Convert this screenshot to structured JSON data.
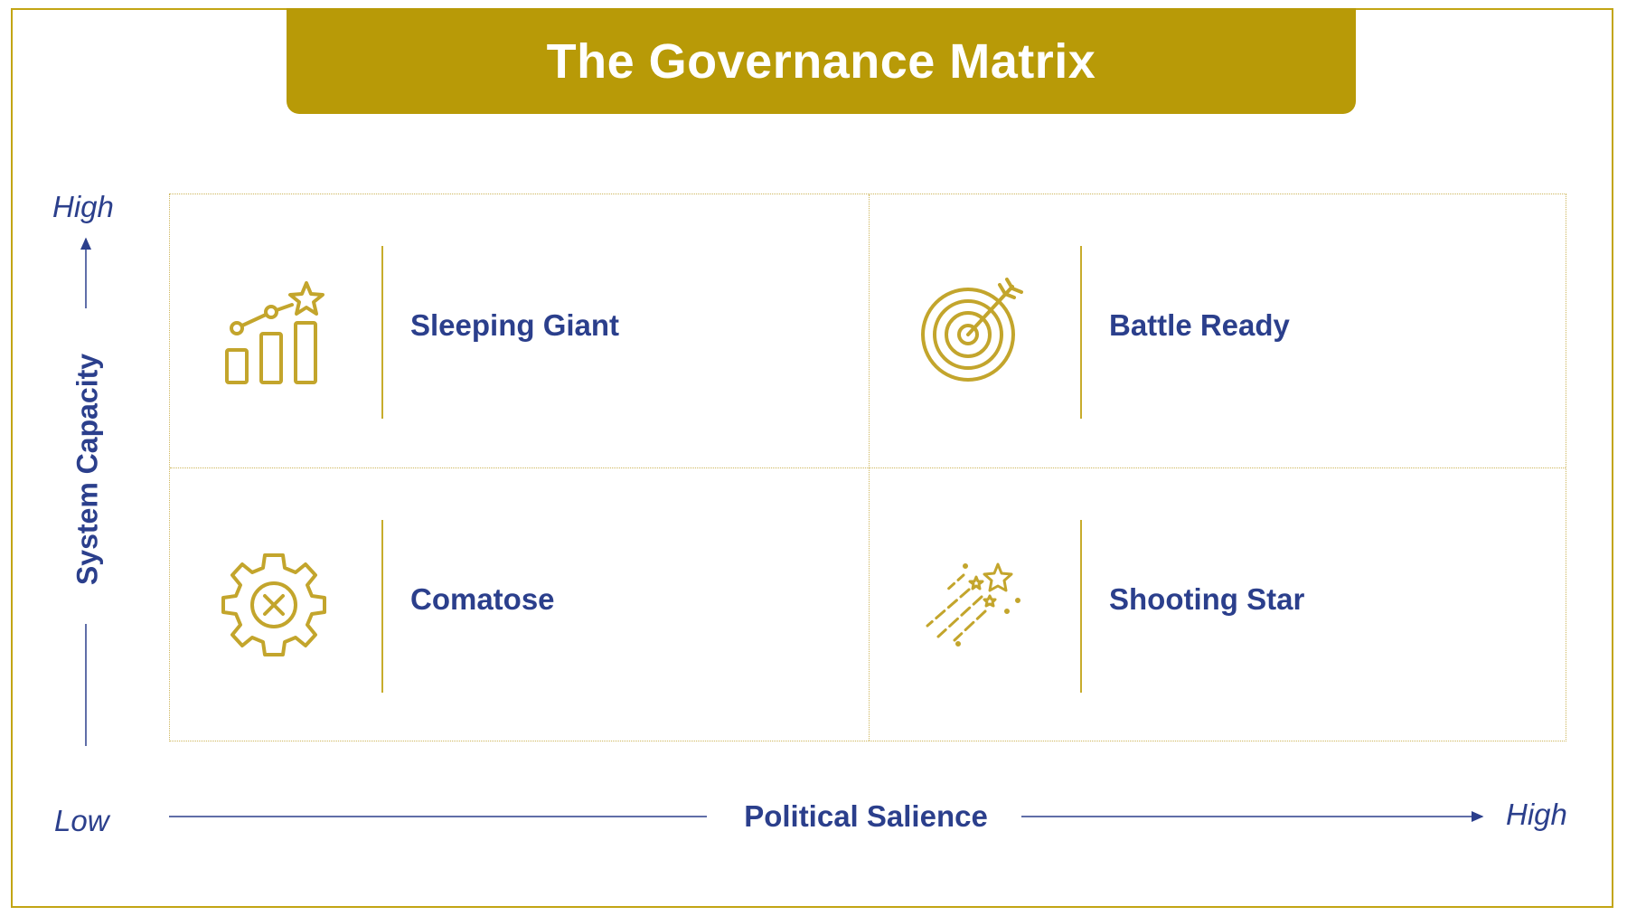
{
  "title": "The Governance Matrix",
  "axes": {
    "y_title": "System Capacity",
    "y_high": "High",
    "x_title": "Political Salience",
    "x_low": "Low",
    "x_high": "High"
  },
  "quadrants": [
    {
      "label": "Sleeping Giant",
      "icon": "growth-chart-icon",
      "position": "top-left"
    },
    {
      "label": "Battle Ready",
      "icon": "target-arrow-icon",
      "position": "top-right"
    },
    {
      "label": "Comatose",
      "icon": "gear-cross-icon",
      "position": "bottom-left"
    },
    {
      "label": "Shooting Star",
      "icon": "shooting-star-icon",
      "position": "bottom-right"
    }
  ],
  "colors": {
    "gold": "#b89a07",
    "navy": "#2b3f8c",
    "icon_gold": "#c3a52c"
  }
}
